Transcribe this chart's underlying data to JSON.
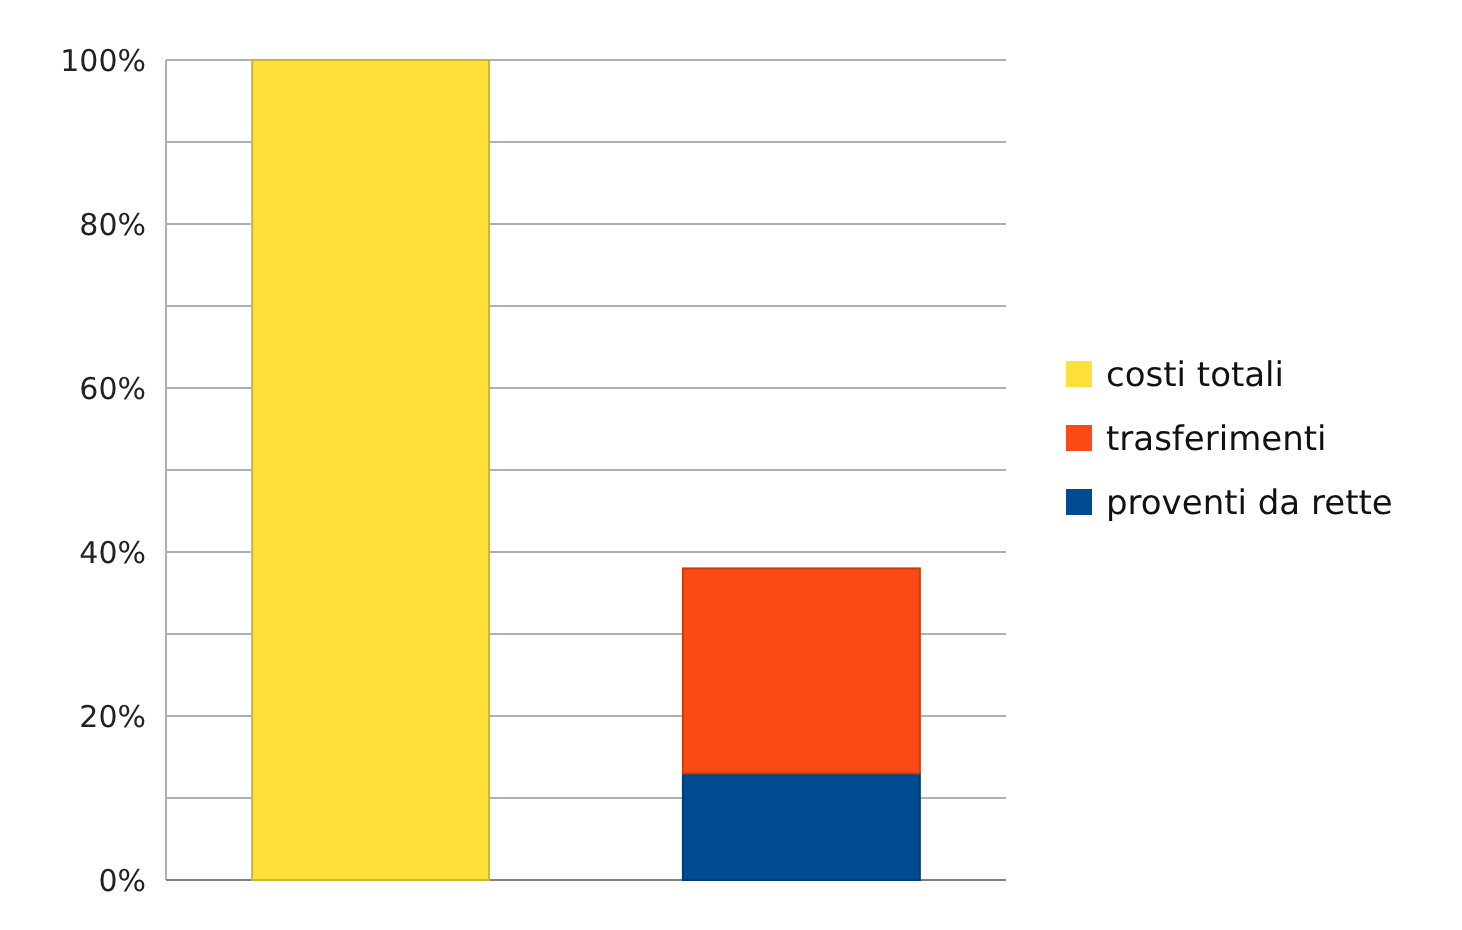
{
  "chart_data": {
    "type": "bar",
    "stacked": true,
    "categories": [
      null,
      null
    ],
    "series": [
      {
        "name": "proventi da rette",
        "color": "#004a8f",
        "values": [
          null,
          13
        ]
      },
      {
        "name": "trasferimenti",
        "color": "#fc4a14",
        "values": [
          null,
          25
        ]
      },
      {
        "name": "costi totali",
        "color": "#fde03a",
        "values": [
          100,
          null
        ]
      }
    ],
    "ylim": [
      0,
      100
    ],
    "yticks": [
      {
        "value": 0,
        "label": "0%"
      },
      {
        "value": 10,
        "label": null
      },
      {
        "value": 20,
        "label": "20%"
      },
      {
        "value": 30,
        "label": null
      },
      {
        "value": 40,
        "label": "40%"
      },
      {
        "value": 50,
        "label": null
      },
      {
        "value": 60,
        "label": "60%"
      },
      {
        "value": 70,
        "label": null
      },
      {
        "value": 80,
        "label": "80%"
      },
      {
        "value": 90,
        "label": null
      },
      {
        "value": 100,
        "label": "100%"
      }
    ],
    "grid": "y",
    "legend": "right"
  }
}
